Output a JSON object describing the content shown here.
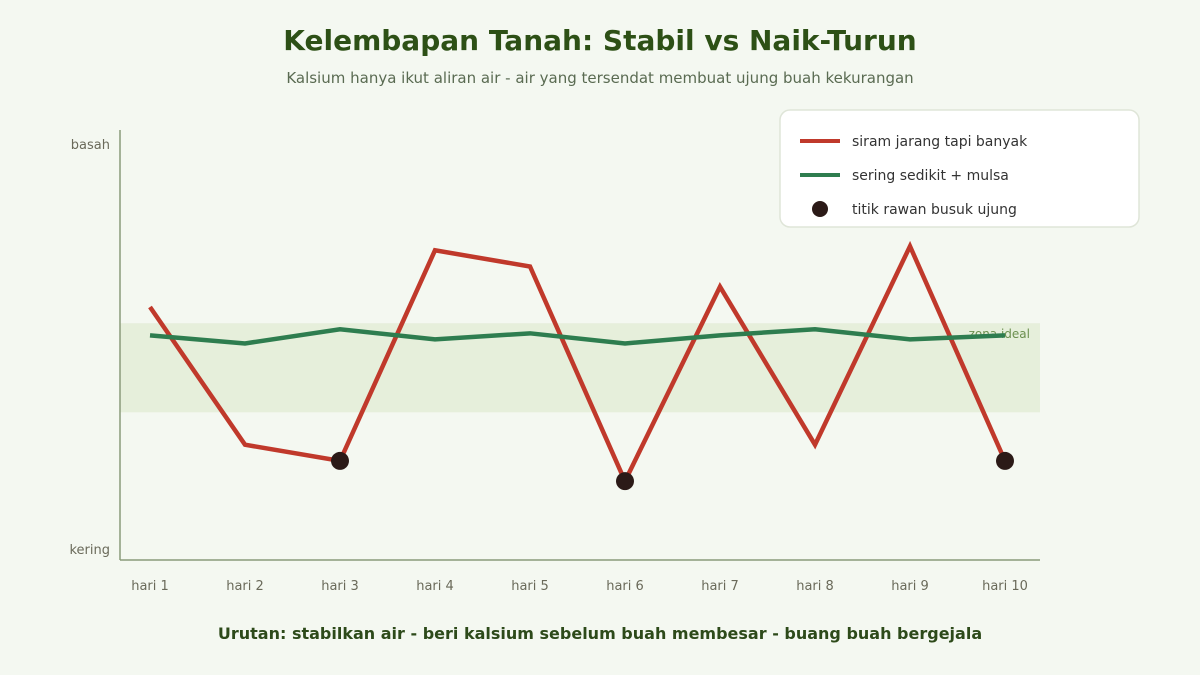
{
  "title": "Kelembapan Tanah: Stabil vs Naik-Turun",
  "subtitle": "Kalsium hanya ikut aliran air - air yang tersendat membuat ujung buah kekurangan",
  "footer": "Urutan: stabilkan air - beri kalsium sebelum buah membesar - buang buah bergejala",
  "colors": {
    "background": "#f4f8f1",
    "title": "#2d5016",
    "erratic": "#c0392b",
    "steady": "#2e7d4f",
    "risk_point": "#2b1a17",
    "ideal_zone": "#e6efdb",
    "axis": "#8a9a7a"
  },
  "chart_data": {
    "type": "line",
    "categories": [
      "hari 1",
      "hari 2",
      "hari 3",
      "hari 4",
      "hari 5",
      "hari 6",
      "hari 7",
      "hari 8",
      "hari 9",
      "hari 10"
    ],
    "y_axis": {
      "top_label": "basah",
      "bottom_label": "kering",
      "range": [
        0,
        100
      ]
    },
    "ideal_zone": {
      "label": "zona ideal",
      "range": [
        34,
        56
      ]
    },
    "series": [
      {
        "name": "siram jarang tapi banyak",
        "color": "#c0392b",
        "values": [
          60,
          26,
          22,
          74,
          70,
          17,
          65,
          26,
          75,
          22
        ]
      },
      {
        "name": "sering sedikit + mulsa",
        "color": "#2e7d4f",
        "values": [
          53,
          51,
          54.5,
          52,
          53.5,
          51,
          53,
          54.5,
          52,
          53
        ]
      }
    ],
    "risk_points": {
      "name": "titik rawan busuk ujung",
      "color": "#2b1a17",
      "indices": [
        2,
        5,
        9
      ]
    },
    "legend_placement": "top-right",
    "grid": false
  }
}
